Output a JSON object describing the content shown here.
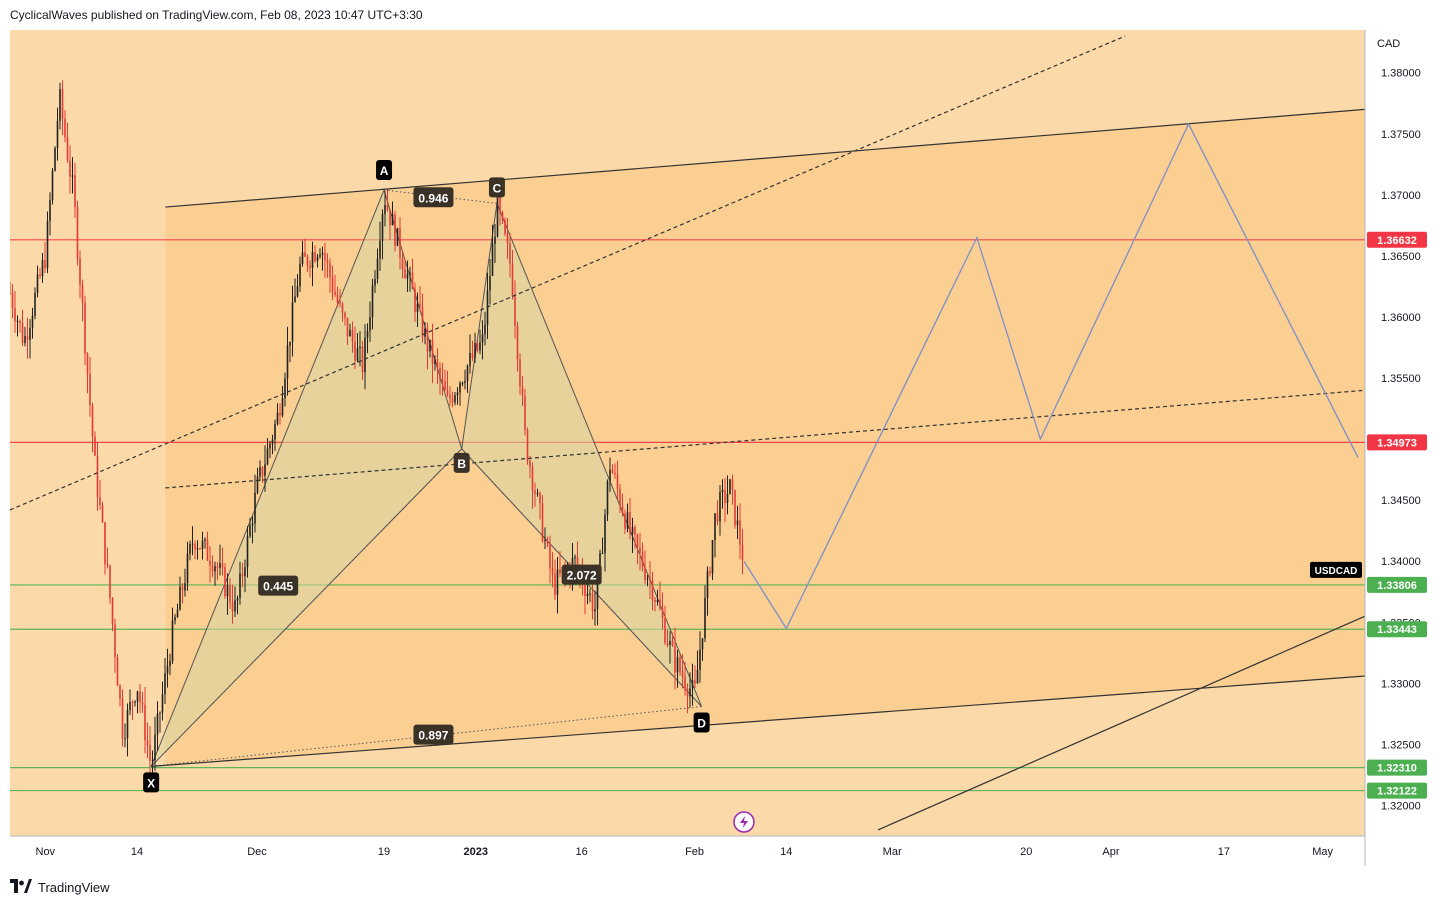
{
  "header": {
    "publish_line": "CyclicalWaves published on TradingView.com, Feb 08, 2023 10:47 UTC+3:30"
  },
  "footer": {
    "brand": "TradingView",
    "logo_icon": "tradingview-logo-icon"
  },
  "colors": {
    "background": "#fcd9a8",
    "candle_up": "#212121",
    "candle_down": "#e53935",
    "resistance": "#f23645",
    "support": "#4caf50",
    "projection": "#7e8ec8",
    "harmonic_fill": "#d6d6a0",
    "trendline": "#333333",
    "label_bg": "#131722"
  },
  "chart_data": {
    "type": "candlestick",
    "symbol": "USDCAD",
    "currency": "CAD",
    "ylim": [
      1.3175,
      1.3835
    ],
    "y_ticks": [
      "1.38000",
      "1.37500",
      "1.37000",
      "1.36500",
      "1.36000",
      "1.35500",
      "1.35000",
      "1.34500",
      "1.34000",
      "1.33500",
      "1.33000",
      "1.32500",
      "1.32000"
    ],
    "x_ticks": [
      {
        "label": "Nov",
        "date": "2022-11-01"
      },
      {
        "label": "14",
        "date": "2022-11-14"
      },
      {
        "label": "Dec",
        "date": "2022-12-01"
      },
      {
        "label": "19",
        "date": "2022-12-19"
      },
      {
        "label": "2023",
        "date": "2023-01-01",
        "bold": true
      },
      {
        "label": "16",
        "date": "2023-01-16"
      },
      {
        "label": "Feb",
        "date": "2023-02-01"
      },
      {
        "label": "14",
        "date": "2023-02-14"
      },
      {
        "label": "Mar",
        "date": "2023-03-01"
      },
      {
        "label": "20",
        "date": "2023-03-20"
      },
      {
        "label": "Apr",
        "date": "2023-04-01"
      },
      {
        "label": "17",
        "date": "2023-04-17"
      },
      {
        "label": "May",
        "date": "2023-05-01"
      }
    ],
    "price_path": [
      [
        "2022-10-27",
        1.362
      ],
      [
        "2022-10-29",
        1.358
      ],
      [
        "2022-11-01",
        1.365
      ],
      [
        "2022-11-03",
        1.378
      ],
      [
        "2022-11-05",
        1.37
      ],
      [
        "2022-11-08",
        1.348
      ],
      [
        "2022-11-10",
        1.338
      ],
      [
        "2022-11-12",
        1.326
      ],
      [
        "2022-11-14",
        1.33
      ],
      [
        "2022-11-16",
        1.3232
      ],
      [
        "2022-11-19",
        1.334
      ],
      [
        "2022-11-22",
        1.342
      ],
      [
        "2022-11-25",
        1.34
      ],
      [
        "2022-11-28",
        1.336
      ],
      [
        "2022-12-01",
        1.346
      ],
      [
        "2022-12-04",
        1.352
      ],
      [
        "2022-12-07",
        1.364
      ],
      [
        "2022-12-10",
        1.366
      ],
      [
        "2022-12-13",
        1.36
      ],
      [
        "2022-12-16",
        1.356
      ],
      [
        "2022-12-19",
        1.37
      ],
      [
        "2022-12-22",
        1.364
      ],
      [
        "2022-12-25",
        1.358
      ],
      [
        "2022-12-28",
        1.353
      ],
      [
        "2022-12-30",
        1.3552
      ],
      [
        "2023-01-02",
        1.358
      ],
      [
        "2023-01-04",
        1.369
      ],
      [
        "2023-01-06",
        1.364
      ],
      [
        "2023-01-08",
        1.35
      ],
      [
        "2023-01-10",
        1.344
      ],
      [
        "2023-01-12",
        1.338
      ],
      [
        "2023-01-15",
        1.34
      ],
      [
        "2023-01-18",
        1.336
      ],
      [
        "2023-01-20",
        1.348
      ],
      [
        "2023-01-23",
        1.342
      ],
      [
        "2023-01-26",
        1.338
      ],
      [
        "2023-01-29",
        1.332
      ],
      [
        "2023-02-01",
        1.329
      ],
      [
        "2023-02-02",
        1.334
      ],
      [
        "2023-02-04",
        1.344
      ],
      [
        "2023-02-06",
        1.346
      ],
      [
        "2023-02-08",
        1.34
      ]
    ],
    "horizontal_levels": [
      {
        "price": 1.36632,
        "label": "1.36632",
        "kind": "resistance"
      },
      {
        "price": 1.34973,
        "label": "1.34973",
        "kind": "resistance"
      },
      {
        "price": 1.33806,
        "label": "1.33806",
        "kind": "support"
      },
      {
        "price": 1.33443,
        "label": "1.33443",
        "kind": "support"
      },
      {
        "price": 1.3231,
        "label": "1.32310",
        "kind": "support"
      },
      {
        "price": 1.32122,
        "label": "1.32122",
        "kind": "support"
      }
    ],
    "last_price_label": "USDCAD",
    "harmonic_pattern": {
      "points": [
        {
          "label": "X",
          "date": "2022-11-16",
          "price": 1.3232
        },
        {
          "label": "A",
          "date": "2022-12-19",
          "price": 1.3704
        },
        {
          "label": "B",
          "date": "2022-12-30",
          "price": 1.3492
        },
        {
          "label": "C",
          "date": "2023-01-04",
          "price": 1.3693
        },
        {
          "label": "D",
          "date": "2023-02-02",
          "price": 1.3281
        }
      ],
      "ratios": [
        {
          "label": "0.946",
          "date": "2022-12-26",
          "price": 1.3698
        },
        {
          "label": "0.445",
          "date": "2022-12-04",
          "price": 1.338
        },
        {
          "label": "2.072",
          "date": "2023-01-16",
          "price": 1.3389
        },
        {
          "label": "0.897",
          "date": "2022-12-26",
          "price": 1.3258
        }
      ]
    },
    "projection_path": [
      [
        "2023-02-08",
        1.34
      ],
      [
        "2023-02-14",
        1.3345
      ],
      [
        "2023-03-13",
        1.3665
      ],
      [
        "2023-03-22",
        1.35
      ],
      [
        "2023-04-12",
        1.3758
      ],
      [
        "2023-05-06",
        1.3485
      ]
    ],
    "lines": [
      {
        "style": "solid",
        "from": [
          "2022-11-18",
          1.369
        ],
        "to": [
          "2023-05-07",
          1.377
        ]
      },
      {
        "style": "solid",
        "from": [
          "2022-11-16",
          1.3232
        ],
        "to": [
          "2023-05-07",
          1.3306
        ]
      },
      {
        "style": "solid",
        "from": [
          "2023-02-27",
          1.318
        ],
        "to": [
          "2023-05-07",
          1.3355
        ]
      },
      {
        "style": "dashed",
        "from": [
          "2022-10-27",
          1.3442
        ],
        "to": [
          "2023-04-03",
          1.383
        ]
      },
      {
        "style": "dashed",
        "from": [
          "2022-11-18",
          1.346
        ],
        "to": [
          "2023-05-07",
          1.354
        ]
      }
    ],
    "channel_start_date": "2022-11-18"
  },
  "events": {
    "lightning_icon": "flash-event-icon"
  }
}
